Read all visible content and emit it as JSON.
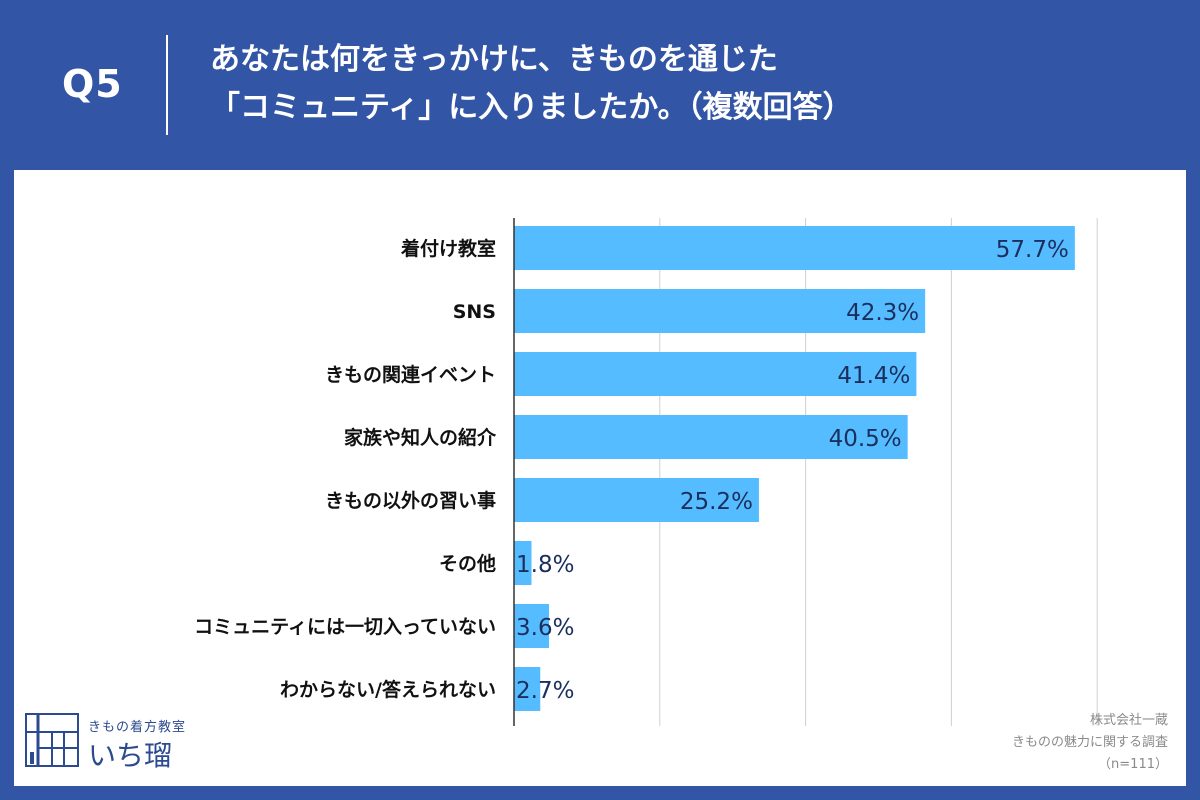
{
  "header": {
    "question": "Q5",
    "title_line1": "あなたは何をきっかけに、きものを通じた",
    "title_line2": "「コミュニティ」に入りましたか。（複数回答）"
  },
  "colors": {
    "background": "#3355a6",
    "bar": "#55bcff",
    "label_text": "#1b2f5e",
    "grid": "#d0d0d0"
  },
  "chart_data": {
    "type": "bar",
    "orientation": "horizontal",
    "categories": [
      "着付け教室",
      "SNS",
      "きもの関連イベント",
      "家族や知人の紹介",
      "きもの以外の習い事",
      "その他",
      "コミュニティには一切入っていない",
      "わからない/答えられない"
    ],
    "values": [
      57.7,
      42.3,
      41.4,
      40.5,
      25.2,
      1.8,
      3.6,
      2.7
    ],
    "value_labels": [
      "57.7%",
      "42.3%",
      "41.4%",
      "40.5%",
      "25.2%",
      "1.8%",
      "3.6%",
      "2.7%"
    ],
    "xlim": [
      0,
      60
    ],
    "grid_step": 15,
    "grid": true,
    "xlabel": "",
    "ylabel": ""
  },
  "logo": {
    "tagline": "きもの着方教室",
    "name": "いち瑠"
  },
  "source": {
    "company": "株式会社一蔵",
    "survey": "きものの魅力に関する調査",
    "sample": "（n=111）"
  }
}
